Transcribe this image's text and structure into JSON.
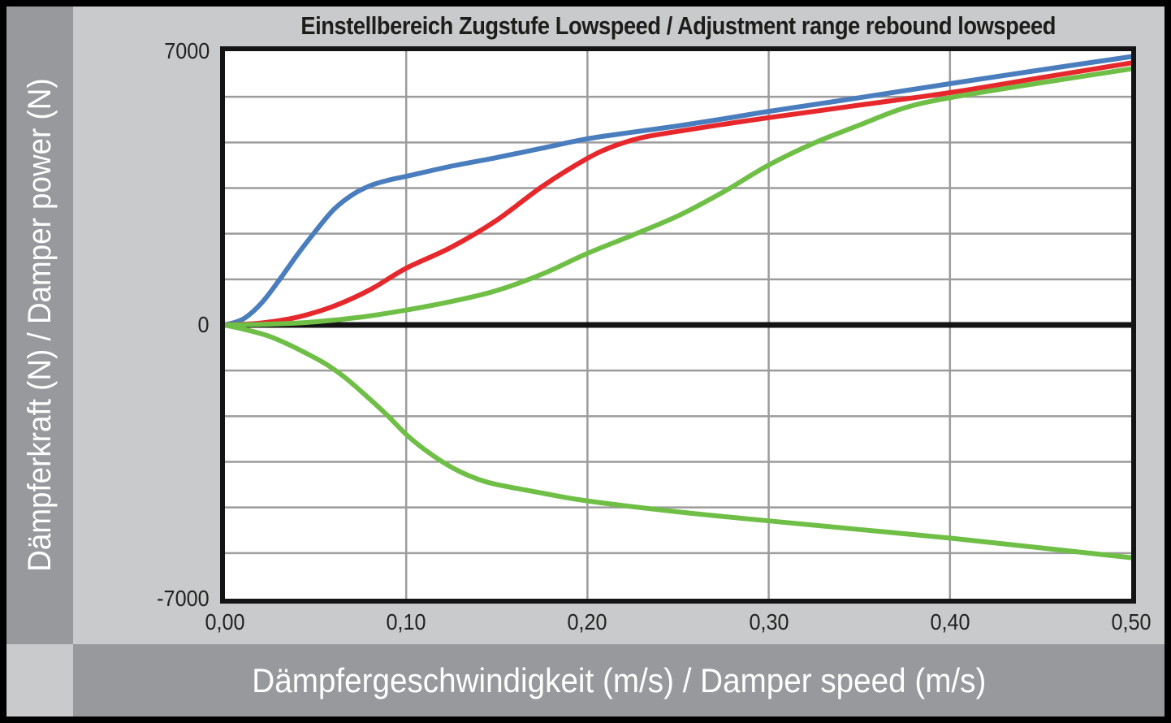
{
  "title": "Einstellbereich Zugstufe Lowspeed / Adjustment range rebound lowspeed",
  "colors": {
    "outer_background": "#c9cacb",
    "axis_band": "#97999c",
    "plot_background": "#ffffff",
    "plot_border": "#141414",
    "gridline": "#9c9c9c",
    "zero_line": "#141414",
    "series_blue": "#4a7dbd",
    "series_red": "#e6282d",
    "series_green": "#6fbf47"
  },
  "chart_data": {
    "type": "line",
    "title": "Einstellbereich Zugstufe Lowspeed / Adjustment range rebound lowspeed",
    "xlabel": "Dämpfergeschwindigkeit (m/s) / Damper speed (m/s)",
    "ylabel": "Dämpferkraft (N) / Damper power (N)",
    "xlim": [
      0,
      0.5
    ],
    "ylim": [
      -7000,
      7000
    ],
    "x_ticks": [
      0.0,
      0.1,
      0.2,
      0.3,
      0.4,
      0.5
    ],
    "x_ticklabels": [
      "0,00",
      "0,10",
      "0,20",
      "0,30",
      "0,40",
      "0,50"
    ],
    "y_ticks": [
      7000,
      0,
      -7000
    ],
    "y_ticklabels": [
      "7000",
      "0",
      "-7000"
    ],
    "grid": {
      "vertical_every_x": 0.1,
      "horizontal_divisions_per_half": 6,
      "legend": "none"
    },
    "series": [
      {
        "name": "rebound-closed-blue",
        "color": "#4a7dbd",
        "x": [
          0,
          0.01,
          0.02,
          0.03,
          0.04,
          0.05,
          0.06,
          0.07,
          0.08,
          0.09,
          0.1,
          0.125,
          0.15,
          0.175,
          0.2,
          0.225,
          0.25,
          0.275,
          0.3,
          0.35,
          0.4,
          0.45,
          0.5
        ],
        "y": [
          0,
          150,
          550,
          1150,
          1800,
          2400,
          2950,
          3320,
          3560,
          3700,
          3800,
          4060,
          4280,
          4520,
          4760,
          4930,
          5090,
          5270,
          5460,
          5810,
          6170,
          6520,
          6860
        ]
      },
      {
        "name": "rebound-medium-red",
        "color": "#e6282d",
        "x": [
          0,
          0.02,
          0.04,
          0.06,
          0.08,
          0.1,
          0.125,
          0.15,
          0.175,
          0.2,
          0.215,
          0.23,
          0.25,
          0.275,
          0.3,
          0.35,
          0.4,
          0.45,
          0.5
        ],
        "y": [
          0,
          50,
          200,
          480,
          900,
          1450,
          1990,
          2680,
          3540,
          4260,
          4580,
          4790,
          4950,
          5130,
          5300,
          5620,
          5940,
          6320,
          6700
        ]
      },
      {
        "name": "rebound-open-green",
        "color": "#6fbf47",
        "x": [
          0,
          0.025,
          0.05,
          0.075,
          0.1,
          0.125,
          0.15,
          0.175,
          0.2,
          0.225,
          0.25,
          0.275,
          0.3,
          0.325,
          0.35,
          0.375,
          0.4,
          0.45,
          0.5
        ],
        "y": [
          0,
          20,
          80,
          200,
          380,
          600,
          880,
          1300,
          1830,
          2300,
          2790,
          3400,
          4090,
          4650,
          5110,
          5550,
          5810,
          6190,
          6550
        ]
      },
      {
        "name": "compression-branch-green",
        "color": "#6fbf47",
        "x": [
          0,
          0.025,
          0.05,
          0.065,
          0.08,
          0.09,
          0.1,
          0.11,
          0.12,
          0.13,
          0.14,
          0.15,
          0.175,
          0.2,
          0.25,
          0.3,
          0.35,
          0.4,
          0.45,
          0.5
        ],
        "y": [
          0,
          -300,
          -850,
          -1300,
          -1900,
          -2330,
          -2800,
          -3180,
          -3500,
          -3760,
          -3950,
          -4080,
          -4300,
          -4500,
          -4780,
          -5010,
          -5230,
          -5450,
          -5700,
          -5950
        ]
      }
    ]
  }
}
